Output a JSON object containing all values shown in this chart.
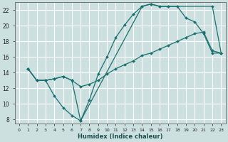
{
  "xlabel": "Humidex (Indice chaleur)",
  "bg_color": "#cde0e0",
  "grid_color": "#ffffff",
  "line_color": "#1a7070",
  "xlim": [
    -0.5,
    23.5
  ],
  "ylim": [
    7.5,
    23.0
  ],
  "yticks": [
    8,
    10,
    12,
    14,
    16,
    18,
    20,
    22
  ],
  "xticks": [
    0,
    1,
    2,
    3,
    4,
    5,
    6,
    7,
    8,
    9,
    10,
    11,
    12,
    13,
    14,
    15,
    16,
    17,
    18,
    19,
    20,
    21,
    22,
    23
  ],
  "curve1_x": [
    1,
    2,
    3,
    4,
    5,
    6,
    7,
    8,
    9,
    10,
    11,
    12,
    13,
    14,
    15,
    16,
    17,
    18,
    19,
    20,
    21,
    22,
    23
  ],
  "curve1_y": [
    14.5,
    13.0,
    13.0,
    11.0,
    9.5,
    8.5,
    7.8,
    10.5,
    13.8,
    16.0,
    18.5,
    20.1,
    21.5,
    22.5,
    22.8,
    22.5,
    22.5,
    22.5,
    21.0,
    20.5,
    19.0,
    16.5,
    16.5
  ],
  "curve2_x": [
    1,
    2,
    3,
    4,
    5,
    6,
    7,
    8,
    9,
    10,
    11,
    12,
    13,
    14,
    15,
    16,
    17,
    18,
    19,
    20,
    21,
    22,
    23
  ],
  "curve2_y": [
    14.5,
    13.0,
    13.0,
    13.2,
    13.5,
    13.0,
    12.2,
    12.5,
    13.0,
    13.8,
    14.5,
    15.0,
    15.5,
    16.2,
    16.5,
    17.0,
    17.5,
    18.0,
    18.5,
    19.0,
    19.2,
    16.8,
    16.5
  ],
  "curve3_x": [
    1,
    2,
    3,
    4,
    5,
    6,
    7,
    14,
    15,
    16,
    17,
    18,
    22,
    23
  ],
  "curve3_y": [
    14.5,
    13.0,
    13.0,
    13.2,
    13.5,
    13.0,
    7.8,
    22.5,
    22.8,
    22.5,
    22.5,
    22.5,
    22.5,
    16.5
  ]
}
